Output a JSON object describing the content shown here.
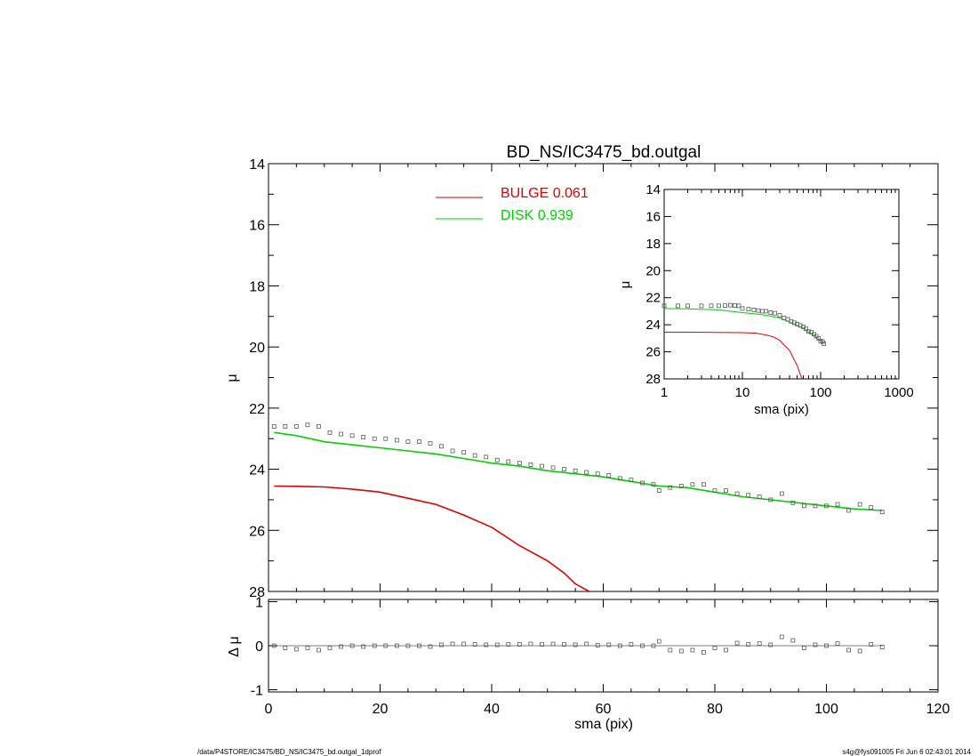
{
  "title": "BD_NS/IC3475_bd.outgal",
  "footer": {
    "left": "/data/P4STORE/IC3475/BD_NS/IC3475_bd.outgal_1dprof",
    "right": "s4g@fys091005  Fri Jun  6 02:43:01 2014"
  },
  "legend": [
    {
      "label": "BULGE  0.061",
      "color": "#e00000"
    },
    {
      "label": "DISK  0.939",
      "color": "#00d000"
    }
  ],
  "colors": {
    "bulge": "#e00000",
    "disk": "#00d000",
    "data": "#000000"
  },
  "chart_data": [
    {
      "name": "main-profile",
      "type": "line",
      "title": "BD_NS/IC3475_bd.outgal",
      "xlabel": "",
      "ylabel": "μ",
      "xlim": [
        0,
        120
      ],
      "ylim": [
        28,
        14
      ],
      "xticks": [
        0,
        20,
        40,
        60,
        80,
        100,
        120
      ],
      "yticks": [
        14,
        16,
        18,
        20,
        22,
        24,
        26,
        28
      ],
      "series": [
        {
          "name": "BULGE",
          "color": "#e00000",
          "x": [
            1,
            5,
            10,
            15,
            20,
            25,
            30,
            35,
            40,
            45,
            50,
            53,
            55,
            57.5
          ],
          "y": [
            24.55,
            24.56,
            24.58,
            24.65,
            24.75,
            24.95,
            25.15,
            25.5,
            25.9,
            26.5,
            27.0,
            27.4,
            27.75,
            28.0
          ]
        },
        {
          "name": "DISK",
          "color": "#00d000",
          "x": [
            1,
            5,
            10,
            15,
            20,
            25,
            30,
            35,
            40,
            45,
            50,
            55,
            60,
            65,
            70,
            75,
            80,
            85,
            90,
            95,
            100,
            105,
            110
          ],
          "y": [
            22.8,
            22.9,
            23.1,
            23.2,
            23.3,
            23.4,
            23.5,
            23.65,
            23.8,
            23.9,
            24.05,
            24.15,
            24.25,
            24.4,
            24.55,
            24.6,
            24.75,
            24.9,
            25.0,
            25.1,
            25.2,
            25.3,
            25.35
          ]
        },
        {
          "name": "data",
          "color": "#000000",
          "marker": "square",
          "x": [
            1,
            3,
            5,
            7,
            9,
            11,
            13,
            15,
            17,
            19,
            21,
            23,
            25,
            27,
            29,
            31,
            33,
            35,
            37,
            39,
            41,
            43,
            45,
            47,
            49,
            51,
            53,
            55,
            57,
            59,
            61,
            63,
            65,
            67,
            69,
            70,
            72,
            74,
            76,
            78,
            80,
            82,
            84,
            86,
            88,
            90,
            92,
            94,
            96,
            98,
            100,
            102,
            104,
            106,
            108,
            110
          ],
          "y": [
            22.6,
            22.6,
            22.6,
            22.55,
            22.6,
            22.8,
            22.85,
            22.9,
            22.95,
            23.0,
            23.0,
            23.05,
            23.1,
            23.1,
            23.15,
            23.25,
            23.4,
            23.45,
            23.55,
            23.6,
            23.7,
            23.75,
            23.8,
            23.85,
            23.9,
            23.95,
            24.0,
            24.05,
            24.1,
            24.15,
            24.2,
            24.3,
            24.35,
            24.45,
            24.5,
            24.7,
            24.6,
            24.55,
            24.5,
            24.5,
            24.7,
            24.7,
            24.8,
            24.85,
            24.9,
            25.0,
            24.8,
            25.1,
            25.2,
            25.2,
            25.2,
            25.15,
            25.35,
            25.15,
            25.25,
            25.4
          ]
        }
      ]
    },
    {
      "name": "residuals",
      "type": "scatter",
      "xlabel": "sma (pix)",
      "ylabel": "Δ μ",
      "xlim": [
        0,
        120
      ],
      "ylim": [
        -1.05,
        1.05
      ],
      "xticks": [
        0,
        20,
        40,
        60,
        80,
        100,
        120
      ],
      "yticks": [
        -1,
        0,
        1
      ],
      "x": [
        1,
        3,
        5,
        7,
        9,
        11,
        13,
        15,
        17,
        19,
        21,
        23,
        25,
        27,
        29,
        31,
        33,
        35,
        37,
        39,
        41,
        43,
        45,
        47,
        49,
        51,
        53,
        55,
        57,
        59,
        61,
        63,
        65,
        67,
        69,
        70,
        72,
        74,
        76,
        78,
        80,
        82,
        84,
        86,
        88,
        90,
        92,
        94,
        96,
        98,
        100,
        102,
        104,
        106,
        108,
        110
      ],
      "y": [
        0.0,
        -0.05,
        -0.08,
        -0.05,
        -0.1,
        -0.05,
        -0.02,
        0.0,
        -0.02,
        0.0,
        0.0,
        0.0,
        0.0,
        0.0,
        -0.02,
        0.02,
        0.04,
        0.04,
        0.03,
        0.02,
        0.02,
        0.03,
        0.03,
        0.04,
        0.03,
        0.04,
        0.03,
        0.02,
        0.04,
        0.01,
        0.02,
        0.0,
        0.03,
        0.0,
        0.0,
        0.1,
        -0.1,
        -0.12,
        -0.1,
        -0.15,
        -0.05,
        -0.1,
        0.06,
        0.03,
        0.05,
        0.02,
        0.2,
        0.12,
        -0.05,
        0.02,
        0.0,
        0.05,
        -0.1,
        -0.12,
        0.03,
        -0.03
      ]
    },
    {
      "name": "inset-log",
      "type": "line",
      "xlabel": "sma (pix)",
      "ylabel": "μ",
      "xscale": "log",
      "xlim": [
        1,
        1000
      ],
      "ylim": [
        28,
        14
      ],
      "xticks": [
        1,
        10,
        100,
        1000
      ],
      "yticks": [
        14,
        16,
        18,
        20,
        22,
        24,
        26,
        28
      ],
      "series": [
        {
          "name": "BULGE",
          "color": "#e00000",
          "x": [
            1,
            2,
            5,
            10,
            15,
            20,
            25,
            30,
            40,
            50,
            57.5
          ],
          "y": [
            24.55,
            24.55,
            24.56,
            24.58,
            24.62,
            24.75,
            24.9,
            25.15,
            25.9,
            27.0,
            28.0
          ]
        },
        {
          "name": "DISK",
          "color": "#00d000",
          "x": [
            1,
            2,
            5,
            10,
            15,
            20,
            30,
            40,
            50,
            60,
            70,
            80,
            90,
            100,
            110
          ],
          "y": [
            22.8,
            22.82,
            22.9,
            23.1,
            23.2,
            23.3,
            23.5,
            23.8,
            24.05,
            24.25,
            24.55,
            24.75,
            25.0,
            25.2,
            25.35
          ]
        },
        {
          "name": "data",
          "color": "#000000",
          "marker": "square",
          "x": [
            1,
            1.5,
            2,
            3,
            4,
            5,
            6,
            7,
            8,
            9,
            10,
            12,
            14,
            16,
            18,
            20,
            23,
            26,
            30,
            34,
            38,
            42,
            46,
            50,
            55,
            60,
            65,
            70,
            76,
            82,
            88,
            94,
            100,
            106,
            110
          ],
          "y": [
            22.6,
            22.6,
            22.6,
            22.6,
            22.6,
            22.6,
            22.58,
            22.55,
            22.58,
            22.6,
            22.8,
            22.85,
            22.9,
            22.95,
            23.0,
            23.0,
            23.1,
            23.15,
            23.3,
            23.5,
            23.6,
            23.75,
            23.85,
            23.95,
            24.05,
            24.15,
            24.3,
            24.5,
            24.55,
            24.7,
            24.85,
            25.0,
            25.2,
            25.25,
            25.4
          ]
        }
      ]
    }
  ]
}
